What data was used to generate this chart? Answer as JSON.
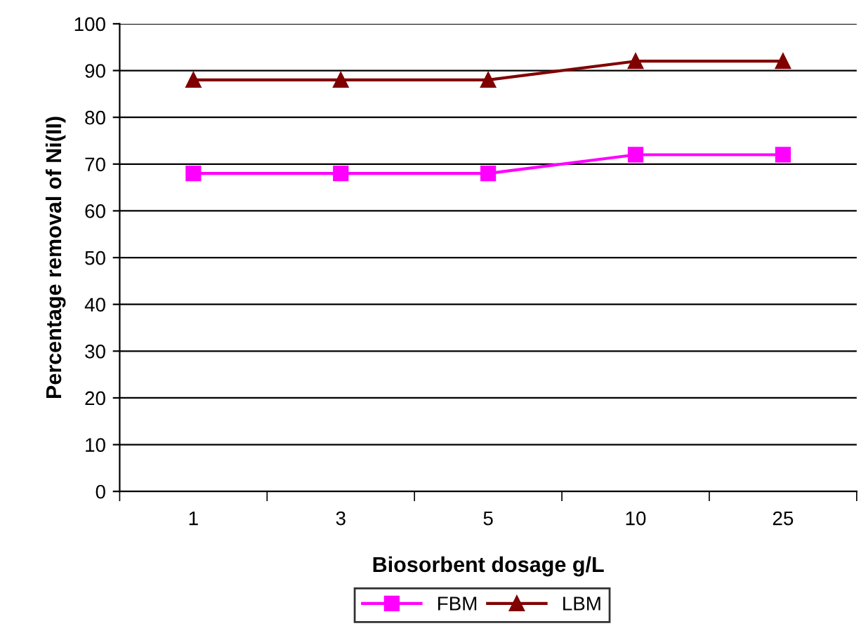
{
  "chart_data": {
    "type": "line",
    "xlabel": "Biosorbent dosage g/L",
    "ylabel": "Percentage removal of Ni(II)",
    "categories": [
      "1",
      "3",
      "5",
      "10",
      "25"
    ],
    "series": [
      {
        "name": "FBM",
        "color": "#ff00ff",
        "marker": "square",
        "values": [
          68,
          68,
          68,
          72,
          72
        ]
      },
      {
        "name": "LBM",
        "color": "#800000",
        "marker": "triangle",
        "values": [
          88,
          88,
          88,
          92,
          92
        ]
      }
    ],
    "ylim": [
      0,
      100
    ],
    "yticks": [
      0,
      10,
      20,
      30,
      40,
      50,
      60,
      70,
      80,
      90,
      100
    ],
    "grid": "y",
    "legend": "bottom",
    "line_style": "solid"
  }
}
